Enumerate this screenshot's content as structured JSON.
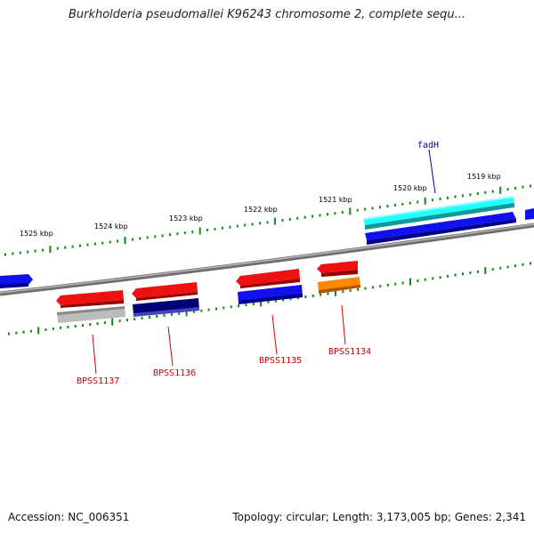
{
  "title": "Burkholderia pseudomallei K96243 chromosome 2, complete sequ...",
  "footer": {
    "accession": "Accession: NC_006351",
    "summary": "Topology: circular; Length: 3,173,005 bp; Genes: 2,341"
  },
  "ruler": {
    "labels": [
      "1525 kbp",
      "1524 kbp",
      "1523 kbp",
      "1522 kbp",
      "1521 kbp",
      "1520 kbp",
      "1519 kbp"
    ]
  },
  "genes": [
    {
      "label": "fadH",
      "color": "#0000aa"
    },
    {
      "label": "BPSS1134",
      "color": "#cc0000"
    },
    {
      "label": "BPSS1135",
      "color": "#cc0000"
    },
    {
      "label": "BPSS1136",
      "color": "#cc0000"
    },
    {
      "label": "BPSS1137",
      "color": "#cc0000"
    }
  ],
  "colors": {
    "backbone": "#808080",
    "ticks": "#118811",
    "red": "#ee1111",
    "blue": "#1111ee",
    "cyan": "#22ffff",
    "navy": "#000077",
    "gray": "#bbbbbb",
    "orange": "#ff8800"
  }
}
